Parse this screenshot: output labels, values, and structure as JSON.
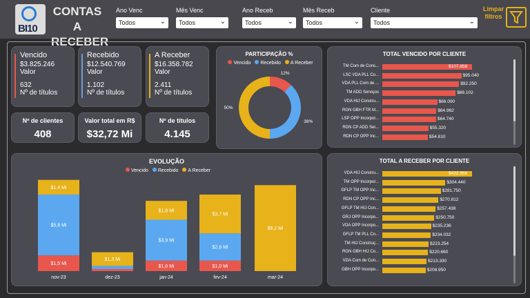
{
  "header": {
    "logo_text": "BI10",
    "title": "CONTAS A RECEBER",
    "filters": [
      {
        "label": "Ano Venc",
        "value": "Todos"
      },
      {
        "label": "Mês Venc",
        "value": "Todos"
      },
      {
        "label": "Ano Receb",
        "value": "Todos"
      },
      {
        "label": "Mês Receb",
        "value": "Todos"
      },
      {
        "label": "Cliente",
        "value": "Todos"
      }
    ],
    "clear_label": "Limpar filtros"
  },
  "kpis": [
    {
      "title": "Vencido",
      "value": "$3.825.246",
      "value_label": "Valor",
      "count": "632",
      "count_label": "Nº de títulos",
      "color": "#e8574c"
    },
    {
      "title": "Recebido",
      "value": "$12.540.769",
      "value_label": "Valor",
      "count": "1.102",
      "count_label": "Nº de títulos",
      "color": "#6b9fd8"
    },
    {
      "title": "A Receber",
      "value": "$16.358.782",
      "value_label": "Valor",
      "count": "2.411",
      "count_label": "Nº de títulos",
      "color": "#e7b21a"
    }
  ],
  "mini_kpis": [
    {
      "title": "Nº de clientes",
      "value": "408"
    },
    {
      "title": "Valor total em R$",
      "value": "$32,72 Mi"
    },
    {
      "title": "Nº de títulos",
      "value": "4.145"
    }
  ],
  "colors": {
    "vencido": "#e8574c",
    "recebido": "#5ba8f0",
    "areceber": "#e7b21a"
  },
  "chart_data": [
    {
      "type": "pie",
      "title": "PARTICIPAÇÃO %",
      "legend": [
        "Vencido",
        "Recebido",
        "A Receber"
      ],
      "values": [
        12,
        38,
        50
      ],
      "labels": [
        "12%",
        "38%",
        "50%"
      ]
    },
    {
      "type": "bar",
      "title": "TOTAL VENCIDO POR CLIENTE",
      "categories": [
        "TM Com de Cons...",
        "LSC VDA PLL Co...",
        "VDA PLL Com de ...",
        "TM ADD Serviços",
        "VDA HIJ Constru...",
        "RGN GBH FTR M...",
        "LSP OPP Incorpor...",
        "RDN CP ADD Ser...",
        "RDN CP OPP Inc..."
      ],
      "values": [
        107858,
        95040,
        92250,
        88102,
        66000,
        64962,
        64740,
        55320,
        54810
      ],
      "labels": [
        "$107.858",
        "$95.040",
        "$92.250",
        "$88.102",
        "$66.000",
        "$64.962",
        "$64.740",
        "$55.320",
        "$54.810"
      ]
    },
    {
      "type": "bar",
      "title": "EVOLUÇÃO",
      "legend": [
        "Vencido",
        "Recebido",
        "A Receber"
      ],
      "categories": [
        "nov-23",
        "dez-23",
        "jan-24",
        "fev-24",
        "mar-24"
      ],
      "series": [
        {
          "name": "Vencido",
          "values": [
            1.5,
            0.2,
            1.0,
            1.0,
            0
          ],
          "labels": [
            "$1,5 Mi",
            "",
            "$1,0 Mi",
            "$1,0 Mi",
            ""
          ]
        },
        {
          "name": "Recebido",
          "values": [
            5.8,
            0.3,
            3.9,
            2.6,
            0
          ],
          "labels": [
            "$5,8 Mi",
            "",
            "$3,9 Mi",
            "$2,6 Mi",
            ""
          ]
        },
        {
          "name": "A Receber",
          "values": [
            1.4,
            1.3,
            1.8,
            3.7,
            8.2
          ],
          "labels": [
            "$1,4 Mi",
            "$1,3 Mi",
            "$1,8 Mi",
            "$3,7 Mi",
            "$8,2 Mi"
          ]
        }
      ]
    },
    {
      "type": "bar",
      "title": "TOTAL A RECEBER POR CLIENTE",
      "categories": [
        "VDA HIJ Constru...",
        "TM OPP Incorpor...",
        "GFLP TM OPP Inc...",
        "RDN CP OPP Inc...",
        "GFLP TM HIJ Con...",
        "GRJ OPP Incorpo...",
        "VDA OPP Incorpo...",
        "GFLP TM PLL Co...",
        "TM HIJ Construç...",
        "RGN GBH HIJ Co...",
        "VDA Com de Con...",
        "GBH OPP Incorpo..."
      ],
      "values": [
        432958,
        304440,
        281750,
        270812,
        257438,
        250750,
        235236,
        234032,
        223254,
        220660,
        213330,
        208950
      ],
      "labels": [
        "$432.958",
        "$304.440",
        "$281.750",
        "$270.812",
        "$257.438",
        "$250.750",
        "$235.236",
        "$234.032",
        "$223.254",
        "$220.660",
        "$213.330",
        "$208.950"
      ]
    }
  ]
}
